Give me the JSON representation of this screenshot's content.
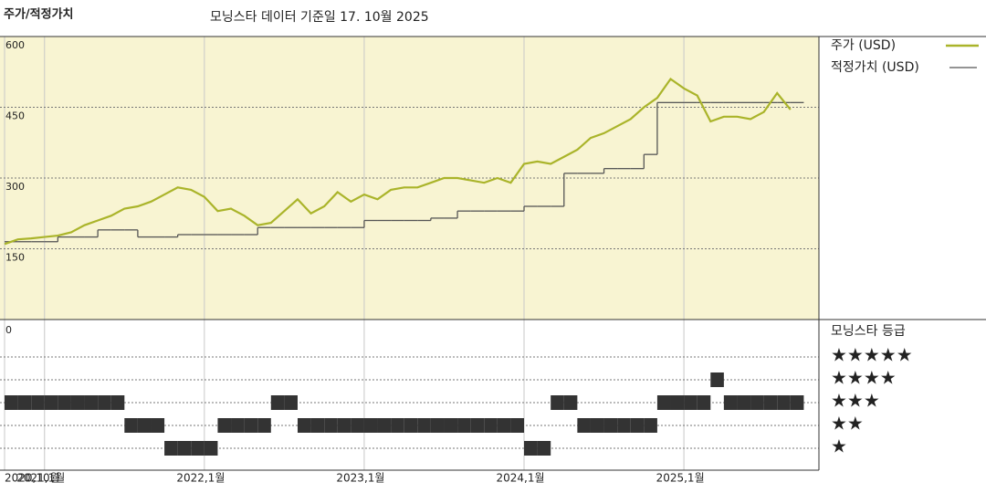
{
  "chart_data": {
    "type": "line",
    "title": "주가/적정가치",
    "subtitle": "모닝스타 데이터 기준일 17. 10월 2025",
    "x": [
      "2020-10",
      "2020-11",
      "2020-12",
      "2021-01",
      "2021-02",
      "2021-03",
      "2021-04",
      "2021-05",
      "2021-06",
      "2021-07",
      "2021-08",
      "2021-09",
      "2021-10",
      "2021-11",
      "2021-12",
      "2022-01",
      "2022-02",
      "2022-03",
      "2022-04",
      "2022-05",
      "2022-06",
      "2022-07",
      "2022-08",
      "2022-09",
      "2022-10",
      "2022-11",
      "2022-12",
      "2023-01",
      "2023-02",
      "2023-03",
      "2023-04",
      "2023-05",
      "2023-06",
      "2023-07",
      "2023-08",
      "2023-09",
      "2023-10",
      "2023-11",
      "2023-12",
      "2024-01",
      "2024-02",
      "2024-03",
      "2024-04",
      "2024-05",
      "2024-06",
      "2024-07",
      "2024-08",
      "2024-09",
      "2024-10",
      "2024-11",
      "2024-12",
      "2025-01",
      "2025-02",
      "2025-03",
      "2025-04",
      "2025-05",
      "2025-06",
      "2025-07",
      "2025-08",
      "2025-09"
    ],
    "xlim": [
      "2020-10",
      "2025-11"
    ],
    "xticks": [
      {
        "value": "2020-10",
        "label": "2020,10월"
      },
      {
        "value": "2021-01",
        "label": "2021,1월"
      },
      {
        "value": "2022-01",
        "label": "2022,1월"
      },
      {
        "value": "2023-01",
        "label": "2023,1월"
      },
      {
        "value": "2024-01",
        "label": "2024,1월"
      },
      {
        "value": "2025-01",
        "label": "2025,1월"
      }
    ],
    "ylim": [
      0,
      600
    ],
    "yticks": [
      150,
      300,
      450,
      600
    ],
    "grid": true,
    "background": "#f8f4d2",
    "series": [
      {
        "name": "주가 (USD)",
        "color": "#aab42a",
        "style": "line",
        "values": [
          160,
          170,
          172,
          175,
          178,
          185,
          200,
          210,
          220,
          235,
          240,
          250,
          265,
          280,
          275,
          260,
          230,
          235,
          220,
          200,
          205,
          230,
          255,
          225,
          240,
          270,
          250,
          265,
          255,
          275,
          280,
          280,
          290,
          300,
          300,
          295,
          290,
          300,
          290,
          330,
          335,
          330,
          345,
          360,
          385,
          395,
          410,
          425,
          450,
          470,
          510,
          490,
          475,
          420,
          430,
          430,
          425,
          440,
          480,
          445
        ]
      },
      {
        "name": "적정가치 (USD)",
        "color": "#555555",
        "style": "step",
        "values": [
          165,
          165,
          165,
          165,
          175,
          175,
          175,
          190,
          190,
          190,
          175,
          175,
          175,
          180,
          180,
          180,
          180,
          180,
          180,
          195,
          195,
          195,
          195,
          195,
          195,
          195,
          195,
          210,
          210,
          210,
          210,
          210,
          215,
          215,
          230,
          230,
          230,
          230,
          230,
          240,
          240,
          240,
          310,
          310,
          310,
          320,
          320,
          320,
          350,
          460,
          460,
          460,
          460,
          460,
          460,
          460,
          460,
          460,
          460,
          460
        ]
      }
    ],
    "ratings": {
      "title": "모닝스타 등급",
      "axis_label": "0",
      "color": "#333333",
      "levels": [
        {
          "value": 5,
          "label": "★★★★★"
        },
        {
          "value": 4,
          "label": "★★★★"
        },
        {
          "value": 3,
          "label": "★★★"
        },
        {
          "value": 2,
          "label": "★★"
        },
        {
          "value": 1,
          "label": "★"
        }
      ],
      "values": [
        3,
        3,
        3,
        3,
        3,
        3,
        3,
        3,
        3,
        2,
        2,
        2,
        1,
        1,
        1,
        1,
        2,
        2,
        2,
        2,
        3,
        3,
        2,
        2,
        2,
        2,
        2,
        2,
        2,
        2,
        2,
        2,
        2,
        2,
        2,
        2,
        2,
        2,
        2,
        1,
        1,
        3,
        3,
        2,
        2,
        2,
        2,
        2,
        2,
        3,
        3,
        3,
        3,
        4,
        3,
        3,
        3,
        3,
        3,
        3
      ]
    }
  }
}
